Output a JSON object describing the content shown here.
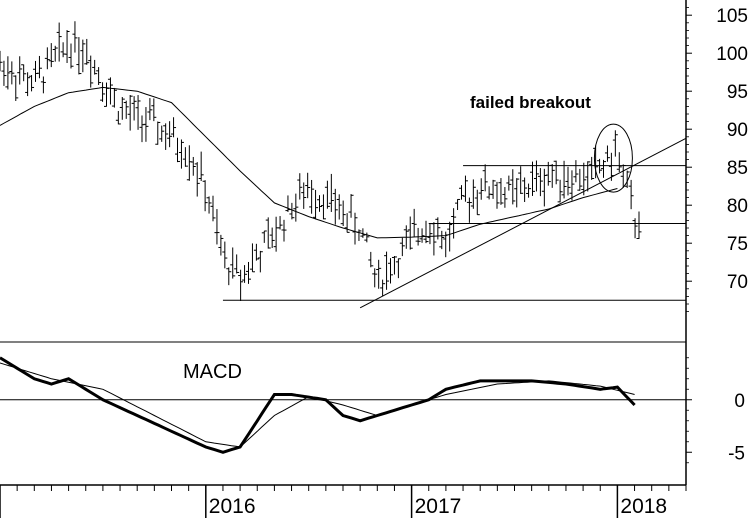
{
  "chart_data": [
    {
      "type": "ohlc",
      "panel": "price",
      "title": "",
      "x_labels": [
        "2016",
        "2017",
        "2018"
      ],
      "x_range": [
        "2015-01",
        "2018-05"
      ],
      "y_ticks": [
        70,
        75,
        80,
        85,
        90,
        95,
        100,
        105
      ],
      "y_range": [
        62,
        107
      ],
      "y_axis_side": "right",
      "annotation": "failed breakout",
      "moving_average": [
        {
          "x": "2015-01",
          "y": 90.5
        },
        {
          "x": "2015-03",
          "y": 93.0
        },
        {
          "x": "2015-05",
          "y": 94.8
        },
        {
          "x": "2015-07",
          "y": 95.5
        },
        {
          "x": "2015-09",
          "y": 95.0
        },
        {
          "x": "2015-11",
          "y": 93.5
        },
        {
          "x": "2016-01",
          "y": 89.0
        },
        {
          "x": "2016-03",
          "y": 84.5
        },
        {
          "x": "2016-05",
          "y": 80.3
        },
        {
          "x": "2016-07",
          "y": 78.5
        },
        {
          "x": "2016-09",
          "y": 77.0
        },
        {
          "x": "2016-11",
          "y": 75.7
        },
        {
          "x": "2017-01",
          "y": 75.8
        },
        {
          "x": "2017-03",
          "y": 76.0
        },
        {
          "x": "2017-05",
          "y": 77.5
        },
        {
          "x": "2017-07",
          "y": 78.5
        },
        {
          "x": "2017-09",
          "y": 79.5
        },
        {
          "x": "2017-11",
          "y": 81.0
        },
        {
          "x": "2018-01",
          "y": 82.2
        }
      ],
      "price_path": [
        {
          "x": "2015-01",
          "y": 98.5
        },
        {
          "x": "2015-03",
          "y": 96.0
        },
        {
          "x": "2015-05",
          "y": 101.5
        },
        {
          "x": "2015-06",
          "y": 100.5
        },
        {
          "x": "2015-08",
          "y": 92.5
        },
        {
          "x": "2015-10",
          "y": 90.5
        },
        {
          "x": "2015-12",
          "y": 87.0
        },
        {
          "x": "2016-01",
          "y": 82.0
        },
        {
          "x": "2016-02",
          "y": 73.0
        },
        {
          "x": "2016-03",
          "y": 70.5
        },
        {
          "x": "2016-04",
          "y": 73.5
        },
        {
          "x": "2016-05",
          "y": 76.0
        },
        {
          "x": "2016-06",
          "y": 80.0
        },
        {
          "x": "2016-07",
          "y": 82.0
        },
        {
          "x": "2016-08",
          "y": 81.0
        },
        {
          "x": "2016-09",
          "y": 79.0
        },
        {
          "x": "2016-10",
          "y": 77.0
        },
        {
          "x": "2016-11",
          "y": 70.0
        },
        {
          "x": "2016-12",
          "y": 72.5
        },
        {
          "x": "2017-01",
          "y": 75.5
        },
        {
          "x": "2017-02",
          "y": 78.0
        },
        {
          "x": "2017-03",
          "y": 75.0
        },
        {
          "x": "2017-04",
          "y": 80.5
        },
        {
          "x": "2017-05",
          "y": 82.5
        },
        {
          "x": "2017-07",
          "y": 81.5
        },
        {
          "x": "2017-09",
          "y": 84.0
        },
        {
          "x": "2017-11",
          "y": 83.5
        },
        {
          "x": "2017-12",
          "y": 85.0
        },
        {
          "x": "2018-01",
          "y": 87.0
        },
        {
          "x": "2018-02",
          "y": 78.0
        }
      ],
      "lines": [
        {
          "kind": "support",
          "points": [
            {
              "x": "2016-02",
              "y": 67.5
            },
            {
              "x": "2018-05",
              "y": 67.5
            }
          ]
        },
        {
          "kind": "resistance",
          "points": [
            {
              "x": "2017-04",
              "y": 85.2
            },
            {
              "x": "2018-05",
              "y": 85.2
            }
          ]
        },
        {
          "kind": "support",
          "points": [
            {
              "x": "2017-02",
              "y": 77.6
            },
            {
              "x": "2018-05",
              "y": 77.6
            }
          ]
        },
        {
          "kind": "trendline",
          "points": [
            {
              "x": "2016-10",
              "y": 66.5
            },
            {
              "x": "2018-05",
              "y": 88.8
            }
          ]
        }
      ]
    },
    {
      "type": "line",
      "panel": "indicator",
      "title": "MACD",
      "y_ticks": [
        -5,
        0
      ],
      "y_range": [
        -6.5,
        5.5
      ],
      "series": [
        {
          "style": "thick",
          "values": [
            {
              "x": "2015-01",
              "y": 4.0
            },
            {
              "x": "2015-03",
              "y": 2.0
            },
            {
              "x": "2015-04",
              "y": 1.5
            },
            {
              "x": "2015-05",
              "y": 2.0
            },
            {
              "x": "2015-07",
              "y": 0.0
            },
            {
              "x": "2015-09",
              "y": -1.5
            },
            {
              "x": "2015-11",
              "y": -3.0
            },
            {
              "x": "2016-01",
              "y": -4.5
            },
            {
              "x": "2016-02",
              "y": -5.0
            },
            {
              "x": "2016-03",
              "y": -4.5
            },
            {
              "x": "2016-04",
              "y": -2.0
            },
            {
              "x": "2016-05",
              "y": 0.5
            },
            {
              "x": "2016-06",
              "y": 0.5
            },
            {
              "x": "2016-08",
              "y": 0.0
            },
            {
              "x": "2016-09",
              "y": -1.5
            },
            {
              "x": "2016-10",
              "y": -2.0
            },
            {
              "x": "2016-12",
              "y": -1.0
            },
            {
              "x": "2017-02",
              "y": 0.0
            },
            {
              "x": "2017-03",
              "y": 1.0
            },
            {
              "x": "2017-05",
              "y": 1.8
            },
            {
              "x": "2017-08",
              "y": 1.8
            },
            {
              "x": "2017-10",
              "y": 1.5
            },
            {
              "x": "2017-12",
              "y": 1.0
            },
            {
              "x": "2018-01",
              "y": 1.2
            },
            {
              "x": "2018-02",
              "y": -0.5
            }
          ]
        },
        {
          "style": "thin",
          "values": [
            {
              "x": "2015-01",
              "y": 3.5
            },
            {
              "x": "2015-04",
              "y": 2.0
            },
            {
              "x": "2015-07",
              "y": 1.0
            },
            {
              "x": "2015-10",
              "y": -1.5
            },
            {
              "x": "2016-01",
              "y": -4.0
            },
            {
              "x": "2016-03",
              "y": -4.5
            },
            {
              "x": "2016-05",
              "y": -1.5
            },
            {
              "x": "2016-07",
              "y": 0.3
            },
            {
              "x": "2016-09",
              "y": -0.5
            },
            {
              "x": "2016-11",
              "y": -1.5
            },
            {
              "x": "2017-01",
              "y": -0.5
            },
            {
              "x": "2017-03",
              "y": 0.5
            },
            {
              "x": "2017-06",
              "y": 1.5
            },
            {
              "x": "2017-09",
              "y": 1.8
            },
            {
              "x": "2017-12",
              "y": 1.3
            },
            {
              "x": "2018-02",
              "y": 0.5
            }
          ]
        }
      ]
    }
  ]
}
